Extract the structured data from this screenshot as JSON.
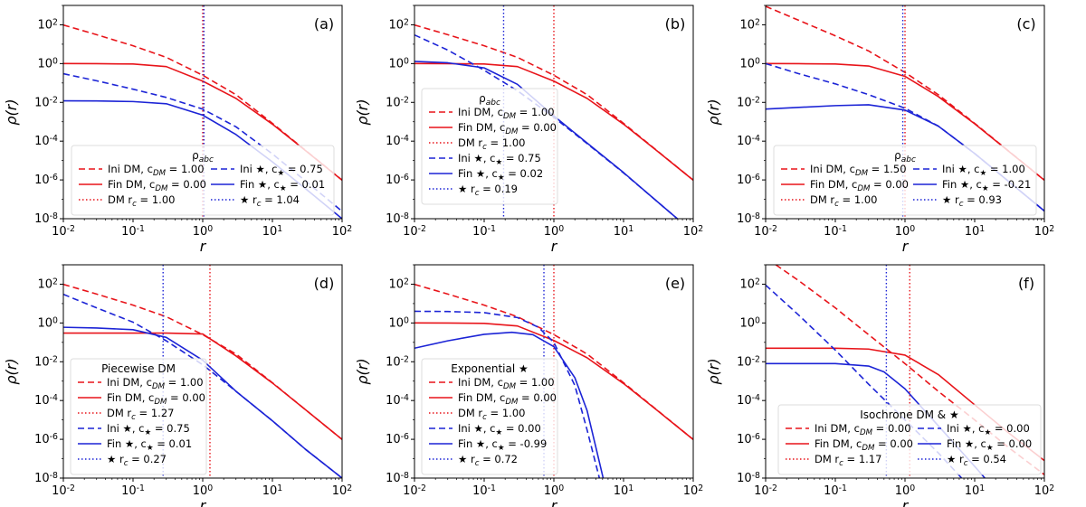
{
  "colors": {
    "dm": "#e8141a",
    "star": "#1c24d6"
  },
  "chart_data": [
    {
      "type": "line",
      "panel": "(a)",
      "xscale": "log",
      "yscale": "log",
      "xlim": [
        0.01,
        100
      ],
      "ylim": [
        1e-08,
        1000
      ],
      "xlabel": "r",
      "ylabel": "ρ(r)",
      "legend_title": "ρ_abc",
      "legend_placement": "bottom-center",
      "legend_cols": 2,
      "xticks": [
        "10^{-2}",
        "10^{-1}",
        "10^{0}",
        "10^{1}",
        "10^{2}"
      ],
      "yticks": [
        "10^{-8}",
        "10^{-6}",
        "10^{-4}",
        "10^{-2}",
        "10^{0}",
        "10^{2}"
      ],
      "series": [
        {
          "name": "Ini DM, c_{DM} = 1.00",
          "color": "dm",
          "style": "dashed",
          "x": [
            0.01,
            0.03,
            0.1,
            0.3,
            1,
            3,
            10,
            30,
            100
          ],
          "y": [
            98,
            31,
            8.3,
            2.1,
            0.25,
            0.025,
            0.00083,
            3.3e-05,
            9.8e-07
          ]
        },
        {
          "name": "Fin DM, c_{DM} = 0.00",
          "color": "dm",
          "style": "solid",
          "x": [
            0.01,
            0.03,
            0.1,
            0.3,
            1,
            3,
            10,
            30,
            100
          ],
          "y": [
            1.0,
            0.99,
            0.95,
            0.7,
            0.125,
            0.016,
            0.00075,
            3.2e-05,
            9.7e-07
          ]
        },
        {
          "name": "DM r_c = 1.00",
          "color": "dm",
          "style": "dotted",
          "vline": 1.0
        },
        {
          "name": "Ini ★, c_★ = 0.75",
          "color": "star",
          "style": "dashed",
          "x": [
            0.01,
            0.03,
            0.1,
            0.3,
            1,
            3,
            10,
            30,
            100
          ],
          "y": [
            0.3,
            0.13,
            0.048,
            0.018,
            0.0045,
            0.00055,
            2.2e-05,
            8.7e-07,
            2.4e-08
          ]
        },
        {
          "name": "Fin ★, c_★ = 0.01",
          "color": "star",
          "style": "solid",
          "x": [
            0.01,
            0.03,
            0.1,
            0.3,
            1,
            3,
            10,
            30,
            100
          ],
          "y": [
            0.012,
            0.0118,
            0.011,
            0.0085,
            0.0022,
            0.00022,
            8.5e-06,
            3.5e-07,
            1e-08
          ]
        },
        {
          "name": "★ r_c = 1.04",
          "color": "star",
          "style": "dotted",
          "vline": 1.04
        }
      ]
    },
    {
      "type": "line",
      "panel": "(b)",
      "xscale": "log",
      "yscale": "log",
      "xlim": [
        0.01,
        100
      ],
      "ylim": [
        1e-08,
        1000
      ],
      "xlabel": "r",
      "ylabel": "ρ(r)",
      "legend_title": "ρ_abc",
      "legend_placement": "center-left",
      "legend_cols": 1,
      "xticks": [
        "10^{-2}",
        "10^{-1}",
        "10^{0}",
        "10^{1}",
        "10^{2}"
      ],
      "yticks": [
        "10^{-8}",
        "10^{-6}",
        "10^{-4}",
        "10^{-2}",
        "10^{0}",
        "10^{2}"
      ],
      "series": [
        {
          "name": "Ini DM, c_{DM} = 1.00",
          "color": "dm",
          "style": "dashed",
          "x": [
            0.01,
            0.03,
            0.1,
            0.3,
            1,
            3,
            10,
            30,
            100
          ],
          "y": [
            98,
            31,
            8.3,
            2.1,
            0.25,
            0.025,
            0.00083,
            3.3e-05,
            9.8e-07
          ]
        },
        {
          "name": "Fin DM, c_{DM} = 0.00",
          "color": "dm",
          "style": "solid",
          "x": [
            0.01,
            0.03,
            0.1,
            0.3,
            1,
            3,
            10,
            30,
            100
          ],
          "y": [
            1.0,
            0.99,
            0.95,
            0.7,
            0.125,
            0.016,
            0.00075,
            3.2e-05,
            9.7e-07
          ]
        },
        {
          "name": "DM r_c = 1.00",
          "color": "dm",
          "style": "dotted",
          "vline": 1.0
        },
        {
          "name": "Ini ★, c_★ = 0.75",
          "color": "star",
          "style": "dashed",
          "x": [
            0.01,
            0.03,
            0.1,
            0.3,
            1,
            3,
            10,
            30,
            100
          ],
          "y": [
            30,
            5.0,
            0.45,
            0.04,
            0.0017,
            7.5e-05,
            2.3e-06,
            8e-08,
            2e-09
          ]
        },
        {
          "name": "Fin ★, c_★ = 0.02",
          "color": "star",
          "style": "solid",
          "x": [
            0.01,
            0.03,
            0.1,
            0.3,
            1,
            3,
            10,
            30,
            100
          ],
          "y": [
            1.3,
            1.1,
            0.6,
            0.085,
            0.002,
            8e-05,
            2.4e-06,
            8e-08,
            2e-09
          ]
        },
        {
          "name": "★ r_c = 0.19",
          "color": "star",
          "style": "dotted",
          "vline": 0.19
        }
      ]
    },
    {
      "type": "line",
      "panel": "(c)",
      "xscale": "log",
      "yscale": "log",
      "xlim": [
        0.01,
        100
      ],
      "ylim": [
        1e-08,
        1000
      ],
      "xlabel": "r",
      "ylabel": "ρ(r)",
      "legend_title": "ρ_abc",
      "legend_placement": "bottom-center",
      "legend_cols": 2,
      "xticks": [
        "10^{-2}",
        "10^{-1}",
        "10^{0}",
        "10^{1}",
        "10^{2}"
      ],
      "yticks": [
        "10^{-8}",
        "10^{-6}",
        "10^{-4}",
        "10^{-2}",
        "10^{0}",
        "10^{2}"
      ],
      "series": [
        {
          "name": "Ini DM, c_{DM} = 1.50",
          "color": "dm",
          "style": "dashed",
          "x": [
            0.01,
            0.03,
            0.1,
            0.3,
            1,
            3,
            10,
            30,
            100
          ],
          "y": [
            900,
            170,
            27,
            4.5,
            0.35,
            0.025,
            0.00083,
            3.3e-05,
            9.8e-07
          ]
        },
        {
          "name": "Fin DM, c_{DM} = 0.00",
          "color": "dm",
          "style": "solid",
          "x": [
            0.01,
            0.03,
            0.1,
            0.3,
            1,
            3,
            10,
            30,
            100
          ],
          "y": [
            1.0,
            0.99,
            0.95,
            0.75,
            0.22,
            0.02,
            0.00078,
            3.2e-05,
            9.7e-07
          ]
        },
        {
          "name": "DM r_c = 1.00",
          "color": "dm",
          "style": "dotted",
          "vline": 1.0
        },
        {
          "name": "Ini ★, c_★ = 1.00",
          "color": "star",
          "style": "dashed",
          "x": [
            0.01,
            0.03,
            0.1,
            0.3,
            1,
            3,
            10,
            30,
            100
          ],
          "y": [
            1.0,
            0.3,
            0.09,
            0.025,
            0.005,
            0.0006,
            2.3e-05,
            9e-07,
            2.5e-08
          ]
        },
        {
          "name": "Fin ★, c_★ = -0.21",
          "color": "star",
          "style": "solid",
          "x": [
            0.01,
            0.03,
            0.1,
            0.3,
            1,
            3,
            10,
            30,
            100
          ],
          "y": [
            0.0045,
            0.0055,
            0.0068,
            0.0075,
            0.004,
            0.0006,
            2.3e-05,
            9e-07,
            2.5e-08
          ]
        },
        {
          "name": "★ r_c = 0.93",
          "color": "star",
          "style": "dotted",
          "vline": 0.93
        }
      ]
    },
    {
      "type": "line",
      "panel": "(d)",
      "xscale": "log",
      "yscale": "log",
      "xlim": [
        0.01,
        100
      ],
      "ylim": [
        1e-08,
        1000
      ],
      "xlabel": "r",
      "ylabel": "ρ(r)",
      "legend_title": "Piecewise DM",
      "legend_placement": "bottom-left",
      "legend_cols": 1,
      "xticks": [
        "10^{-2}",
        "10^{-1}",
        "10^{0}",
        "10^{1}",
        "10^{2}"
      ],
      "yticks": [
        "10^{-8}",
        "10^{-6}",
        "10^{-4}",
        "10^{-2}",
        "10^{0}",
        "10^{2}"
      ],
      "series": [
        {
          "name": "Ini DM, c_{DM} = 1.00",
          "color": "dm",
          "style": "dashed",
          "x": [
            0.01,
            0.03,
            0.1,
            0.3,
            1,
            3,
            10,
            30,
            100
          ],
          "y": [
            98,
            31,
            8.3,
            2.1,
            0.25,
            0.025,
            0.00083,
            3.3e-05,
            9.8e-07
          ]
        },
        {
          "name": "Fin DM, c_{DM} = 0.00",
          "color": "dm",
          "style": "solid",
          "x": [
            0.01,
            0.03,
            0.1,
            0.3,
            1,
            3,
            10,
            30,
            100
          ],
          "y": [
            0.3,
            0.3,
            0.3,
            0.3,
            0.27,
            0.02,
            0.0008,
            3.3e-05,
            9.8e-07
          ]
        },
        {
          "name": "DM r_c = 1.27",
          "color": "dm",
          "style": "dotted",
          "vline": 1.27
        },
        {
          "name": "Ini ★, c_★ = 0.75",
          "color": "star",
          "style": "dashed",
          "x": [
            0.01,
            0.03,
            0.1,
            0.3,
            1,
            3,
            10,
            30,
            100
          ],
          "y": [
            30,
            6.0,
            1.1,
            0.12,
            0.007,
            0.0003,
            9e-06,
            3e-07,
            1e-08
          ]
        },
        {
          "name": "Fin ★, c_★ = 0.01",
          "color": "star",
          "style": "solid",
          "x": [
            0.01,
            0.03,
            0.1,
            0.3,
            1,
            3,
            10,
            30,
            100
          ],
          "y": [
            0.6,
            0.55,
            0.45,
            0.18,
            0.012,
            0.0003,
            9e-06,
            3e-07,
            1e-08
          ]
        },
        {
          "name": "★ r_c = 0.27",
          "color": "star",
          "style": "dotted",
          "vline": 0.27
        }
      ]
    },
    {
      "type": "line",
      "panel": "(e)",
      "xscale": "log",
      "yscale": "log",
      "xlim": [
        0.01,
        100
      ],
      "ylim": [
        1e-08,
        1000
      ],
      "xlabel": "r",
      "ylabel": "ρ(r)",
      "legend_title": "Exponential ★",
      "legend_placement": "bottom-left",
      "legend_cols": 1,
      "xticks": [
        "10^{-2}",
        "10^{-1}",
        "10^{0}",
        "10^{1}",
        "10^{2}"
      ],
      "yticks": [
        "10^{-8}",
        "10^{-6}",
        "10^{-4}",
        "10^{-2}",
        "10^{0}",
        "10^{2}"
      ],
      "series": [
        {
          "name": "Ini DM, c_{DM} = 1.00",
          "color": "dm",
          "style": "dashed",
          "x": [
            0.01,
            0.03,
            0.1,
            0.3,
            1,
            3,
            10,
            30,
            100
          ],
          "y": [
            98,
            31,
            8.3,
            2.1,
            0.25,
            0.025,
            0.00083,
            3.3e-05,
            9.8e-07
          ]
        },
        {
          "name": "Fin DM, c_{DM} = 0.00",
          "color": "dm",
          "style": "solid",
          "x": [
            0.01,
            0.03,
            0.1,
            0.3,
            1,
            3,
            10,
            30,
            100
          ],
          "y": [
            1.0,
            0.99,
            0.95,
            0.7,
            0.125,
            0.016,
            0.00075,
            3.2e-05,
            9.7e-07
          ]
        },
        {
          "name": "DM r_c = 1.00",
          "color": "dm",
          "style": "dotted",
          "vline": 1.0
        },
        {
          "name": "Ini ★, c_★ = 0.00",
          "color": "star",
          "style": "dashed",
          "x": [
            0.01,
            0.03,
            0.1,
            0.3,
            0.6,
            1,
            2,
            3,
            4.5
          ],
          "y": [
            4.0,
            3.9,
            3.4,
            1.9,
            0.6,
            0.1,
            0.0006,
            3e-06,
            1e-08
          ]
        },
        {
          "name": "Fin ★, c_★ = -0.99",
          "color": "star",
          "style": "solid",
          "x": [
            0.01,
            0.03,
            0.1,
            0.25,
            0.5,
            1,
            2,
            3,
            4,
            5.1
          ],
          "y": [
            0.05,
            0.12,
            0.26,
            0.33,
            0.25,
            0.06,
            0.0015,
            3e-05,
            4e-07,
            1e-08
          ]
        },
        {
          "name": "★ r_c = 0.72",
          "color": "star",
          "style": "dotted",
          "vline": 0.72
        }
      ]
    },
    {
      "type": "line",
      "panel": "(f)",
      "xscale": "log",
      "yscale": "log",
      "xlim": [
        0.01,
        100
      ],
      "ylim": [
        1e-08,
        1000
      ],
      "xlabel": "r",
      "ylabel": "ρ(r)",
      "legend_title": "Isochrone DM & ★",
      "legend_placement": "bottom-right",
      "legend_cols": 2,
      "xticks": [
        "10^{-2}",
        "10^{-1}",
        "10^{0}",
        "10^{1}",
        "10^{2}"
      ],
      "yticks": [
        "10^{-8}",
        "10^{-6}",
        "10^{-4}",
        "10^{-2}",
        "10^{0}",
        "10^{2}"
      ],
      "series": [
        {
          "name": "Ini DM, c_{DM} = 0.00",
          "color": "dm",
          "style": "dashed",
          "x": [
            0.014,
            0.03,
            0.1,
            0.3,
            1,
            3,
            10,
            30,
            100
          ],
          "y": [
            1000,
            150,
            6,
            0.25,
            0.008,
            0.0003,
            1e-05,
            4e-07,
            1.5e-08
          ]
        },
        {
          "name": "Fin DM, c_{DM} = 0.00",
          "color": "dm",
          "style": "solid",
          "x": [
            0.01,
            0.03,
            0.1,
            0.3,
            1,
            3,
            10,
            30,
            100
          ],
          "y": [
            0.05,
            0.05,
            0.05,
            0.045,
            0.022,
            0.0022,
            6e-05,
            2.3e-06,
            8e-08
          ]
        },
        {
          "name": "DM r_c = 1.17",
          "color": "dm",
          "style": "dotted",
          "vline": 1.17
        },
        {
          "name": "Ini ★, c_★ = 0.00",
          "color": "star",
          "style": "dashed",
          "x": [
            0.01,
            0.03,
            0.1,
            0.3,
            1,
            3,
            6.5
          ],
          "y": [
            90,
            2.5,
            0.04,
            0.0007,
            1e-05,
            2e-07,
            1e-08
          ]
        },
        {
          "name": "Fin ★, c_★ = 0.00",
          "color": "star",
          "style": "solid",
          "x": [
            0.01,
            0.03,
            0.1,
            0.3,
            0.5,
            1,
            3,
            10,
            14
          ],
          "y": [
            0.008,
            0.008,
            0.008,
            0.006,
            0.003,
            0.0004,
            5e-06,
            4e-08,
            1e-08
          ]
        },
        {
          "name": "★ r_c = 0.54",
          "color": "star",
          "style": "dotted",
          "vline": 0.54
        }
      ]
    }
  ]
}
